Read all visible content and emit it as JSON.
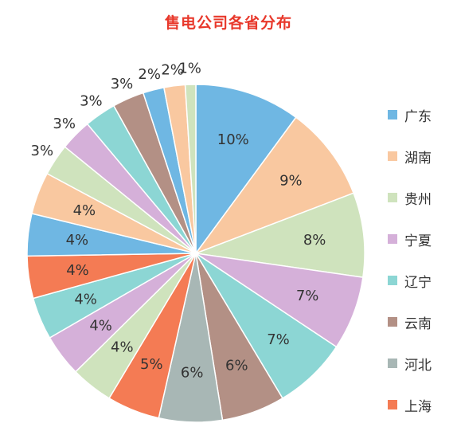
{
  "chart_data": {
    "type": "pie",
    "title": "售电公司各省分布",
    "slices": [
      {
        "label": "广东",
        "value": 10,
        "display": "10%",
        "color": "#6fb7e3"
      },
      {
        "label": "湖南",
        "value": 9,
        "display": "9%",
        "color": "#f9c8a0"
      },
      {
        "label": "贵州",
        "value": 8,
        "display": "8%",
        "color": "#cfe3bd"
      },
      {
        "label": "宁夏",
        "value": 7,
        "display": "7%",
        "color": "#d5b0d9"
      },
      {
        "label": "辽宁",
        "value": 7,
        "display": "7%",
        "color": "#8cd6d4"
      },
      {
        "label": "云南",
        "value": 6,
        "display": "6%",
        "color": "#b39085"
      },
      {
        "label": "河北",
        "value": 6,
        "display": "6%",
        "color": "#a8b7b5"
      },
      {
        "label": "上海",
        "value": 5,
        "display": "5%",
        "color": "#f47b54"
      },
      {
        "label": "",
        "value": 4,
        "display": "4%",
        "color": "#cfe3bd"
      },
      {
        "label": "",
        "value": 4,
        "display": "4%",
        "color": "#d5b0d9"
      },
      {
        "label": "",
        "value": 4,
        "display": "4%",
        "color": "#8cd6d4"
      },
      {
        "label": "",
        "value": 4,
        "display": "4%",
        "color": "#f47b54"
      },
      {
        "label": "",
        "value": 4,
        "display": "4%",
        "color": "#6fb7e3"
      },
      {
        "label": "",
        "value": 4,
        "display": "4%",
        "color": "#f9c8a0"
      },
      {
        "label": "",
        "value": 3,
        "display": "3%",
        "color": "#cfe3bd"
      },
      {
        "label": "",
        "value": 3,
        "display": "3%",
        "color": "#d5b0d9"
      },
      {
        "label": "",
        "value": 3,
        "display": "3%",
        "color": "#8cd6d4"
      },
      {
        "label": "",
        "value": 3,
        "display": "3%",
        "color": "#b39085"
      },
      {
        "label": "",
        "value": 2,
        "display": "2%",
        "color": "#6fb7e3"
      },
      {
        "label": "",
        "value": 2,
        "display": "2%",
        "color": "#f9c8a0"
      },
      {
        "label": "",
        "value": 1,
        "display": "1%",
        "color": "#cfe3bd"
      }
    ],
    "legend": {
      "placement": "right",
      "items": [
        {
          "label": "广东",
          "color": "#6fb7e3"
        },
        {
          "label": "湖南",
          "color": "#f9c8a0"
        },
        {
          "label": "贵州",
          "color": "#cfe3bd"
        },
        {
          "label": "宁夏",
          "color": "#d5b0d9"
        },
        {
          "label": "辽宁",
          "color": "#8cd6d4"
        },
        {
          "label": "云南",
          "color": "#b39085"
        },
        {
          "label": "河北",
          "color": "#a8b7b5"
        },
        {
          "label": "上海",
          "color": "#f47b54"
        }
      ]
    }
  },
  "colors": {
    "title": "#e8382b",
    "slice_border": "#ffffff",
    "label_text": "#333333"
  }
}
